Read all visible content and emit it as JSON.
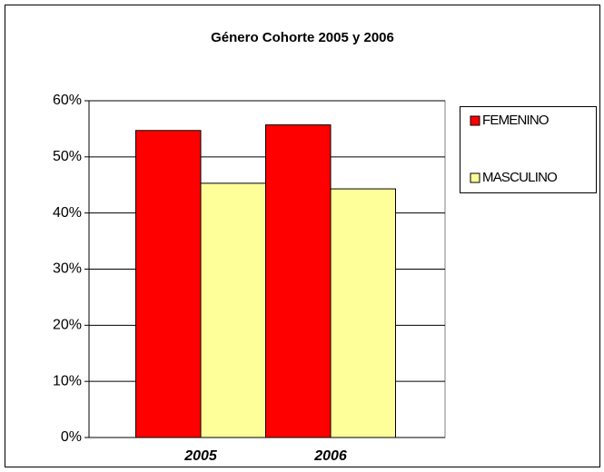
{
  "chart_data": {
    "type": "bar",
    "title": "Género Cohorte 2005 y  2006",
    "categories": [
      "2005",
      "2006"
    ],
    "series": [
      {
        "name": "FEMENINO",
        "color": "#ff0000",
        "values": [
          54.7,
          55.7
        ]
      },
      {
        "name": "MASCULINO",
        "color": "#ffff99",
        "values": [
          45.3,
          44.3
        ]
      }
    ],
    "ylim": [
      0,
      60
    ],
    "yticks": [
      {
        "value": 0,
        "label": "0%"
      },
      {
        "value": 10,
        "label": "10%"
      },
      {
        "value": 20,
        "label": "20%"
      },
      {
        "value": 30,
        "label": "30%"
      },
      {
        "value": 40,
        "label": "40%"
      },
      {
        "value": 50,
        "label": "50%"
      },
      {
        "value": 60,
        "label": "60%"
      }
    ],
    "grid": true
  }
}
